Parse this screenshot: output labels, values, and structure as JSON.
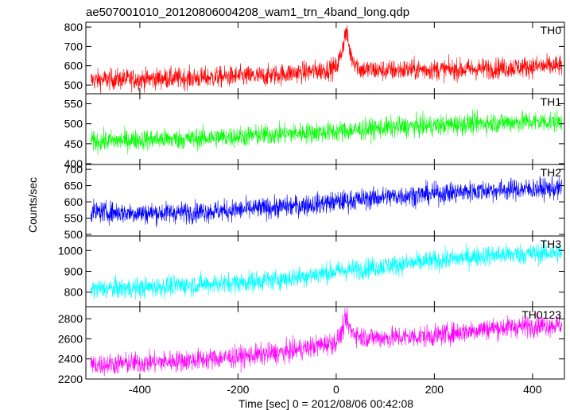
{
  "figure": {
    "title": "ae507001010_20120806004208_wam1_trn_4band_long.qdp",
    "xlabel": "Time [sec] 0 = 2012/08/06 00:42:08",
    "ylabel": "Counts/sec"
  },
  "chart_data": [
    {
      "type": "line",
      "name": "TH0",
      "color": "#ff0000",
      "xlim": [
        -510,
        465
      ],
      "ylim": [
        455,
        825
      ],
      "yticks": [
        500,
        600,
        700,
        800
      ],
      "xticks": [
        -400,
        -200,
        0,
        200,
        400
      ],
      "grid": false,
      "x": [
        -500,
        -450,
        -400,
        -350,
        -300,
        -250,
        -200,
        -150,
        -100,
        -50,
        -20,
        0,
        10,
        20,
        30,
        50,
        100,
        150,
        200,
        250,
        300,
        350,
        400,
        460
      ],
      "y": [
        525,
        530,
        530,
        535,
        535,
        540,
        545,
        545,
        560,
        570,
        580,
        590,
        660,
        780,
        650,
        580,
        575,
        580,
        580,
        580,
        585,
        590,
        595,
        600
      ]
    },
    {
      "type": "line",
      "name": "TH1",
      "color": "#00ff00",
      "xlim": [
        -510,
        465
      ],
      "ylim": [
        398,
        575
      ],
      "yticks": [
        400,
        450,
        500,
        550
      ],
      "xticks": [
        -400,
        -200,
        0,
        200,
        400
      ],
      "grid": false,
      "x": [
        -500,
        -400,
        -300,
        -200,
        -100,
        0,
        100,
        200,
        300,
        400,
        460
      ],
      "y": [
        455,
        460,
        462,
        468,
        475,
        480,
        490,
        495,
        502,
        505,
        505
      ]
    },
    {
      "type": "line",
      "name": "TH2",
      "color": "#0000ff",
      "xlim": [
        -510,
        465
      ],
      "ylim": [
        495,
        715
      ],
      "yticks": [
        500,
        550,
        600,
        650,
        700
      ],
      "xticks": [
        -400,
        -200,
        0,
        200,
        400
      ],
      "grid": false,
      "x": [
        -500,
        -400,
        -300,
        -200,
        -100,
        0,
        100,
        200,
        300,
        400,
        460
      ],
      "y": [
        570,
        565,
        568,
        575,
        585,
        600,
        615,
        625,
        635,
        640,
        640
      ]
    },
    {
      "type": "line",
      "name": "TH3",
      "color": "#00ffff",
      "xlim": [
        -510,
        465
      ],
      "ylim": [
        730,
        1070
      ],
      "yticks": [
        800,
        900,
        1000
      ],
      "xticks": [
        -400,
        -200,
        0,
        200,
        400
      ],
      "grid": false,
      "x": [
        -500,
        -400,
        -300,
        -200,
        -100,
        0,
        100,
        200,
        300,
        400,
        460
      ],
      "y": [
        815,
        820,
        835,
        845,
        865,
        900,
        925,
        950,
        975,
        985,
        990
      ]
    },
    {
      "type": "line",
      "name": "TH0123",
      "color": "#ff00ff",
      "xlim": [
        -510,
        465
      ],
      "ylim": [
        2200,
        2920
      ],
      "yticks": [
        2200,
        2400,
        2600,
        2800
      ],
      "xticks": [
        -400,
        -200,
        0,
        200,
        400
      ],
      "grid": false,
      "x": [
        -500,
        -400,
        -300,
        -200,
        -100,
        -50,
        0,
        10,
        20,
        30,
        50,
        100,
        200,
        300,
        400,
        460
      ],
      "y": [
        2340,
        2360,
        2385,
        2420,
        2470,
        2520,
        2570,
        2650,
        2800,
        2680,
        2620,
        2610,
        2630,
        2700,
        2730,
        2740
      ]
    }
  ]
}
